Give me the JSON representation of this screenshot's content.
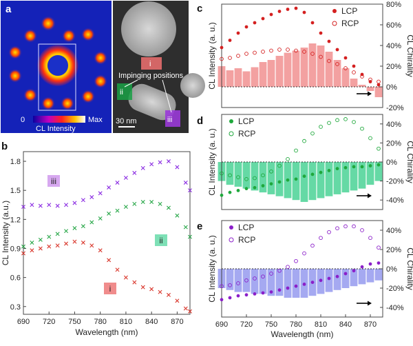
{
  "panels": {
    "a": {
      "label": "a",
      "colorbar_min": "0",
      "colorbar_max": "Max",
      "colorbar_title": "CL Intensity",
      "scalebar": "30 nm",
      "impinging_label": "Impinging positions",
      "pos_i": "i",
      "pos_ii": "ii",
      "pos_iii": "iii"
    },
    "b": {
      "label": "b"
    },
    "c": {
      "label": "c"
    },
    "d": {
      "label": "d"
    },
    "e": {
      "label": "e"
    }
  },
  "chart_data": [
    {
      "panel": "b",
      "type": "scatter",
      "xlabel": "Wavelength (nm)",
      "ylabel": "CL Intensity (a.u.)",
      "xlim": [
        690,
        885
      ],
      "ylim": [
        0.22,
        1.9
      ],
      "xticks": [
        "690",
        "720",
        "750",
        "780",
        "810",
        "840",
        "870"
      ],
      "yticks": [
        "0.3",
        "0.6",
        "0.9",
        "1.2",
        "1.5",
        "1.8"
      ],
      "marker": "x",
      "series": [
        {
          "name": "i",
          "color": "#d9362b",
          "x": [
            690,
            700,
            710,
            720,
            730,
            740,
            750,
            760,
            770,
            780,
            790,
            800,
            810,
            820,
            830,
            840,
            850,
            860,
            870,
            880,
            885
          ],
          "y": [
            0.85,
            0.88,
            0.9,
            0.92,
            0.93,
            0.95,
            0.97,
            0.96,
            0.93,
            0.88,
            0.78,
            0.68,
            0.6,
            0.55,
            0.5,
            0.48,
            0.45,
            0.42,
            0.36,
            0.28,
            0.25
          ]
        },
        {
          "name": "ii",
          "color": "#2aa84a",
          "x": [
            690,
            700,
            710,
            720,
            730,
            740,
            750,
            760,
            770,
            780,
            790,
            800,
            810,
            820,
            830,
            840,
            850,
            860,
            870,
            880,
            885
          ],
          "y": [
            0.92,
            0.96,
            0.99,
            1.02,
            1.05,
            1.08,
            1.11,
            1.13,
            1.17,
            1.21,
            1.26,
            1.29,
            1.33,
            1.36,
            1.38,
            1.38,
            1.36,
            1.32,
            1.24,
            1.12,
            1.02
          ]
        },
        {
          "name": "iii",
          "color": "#8a2be2",
          "x": [
            690,
            700,
            710,
            720,
            730,
            740,
            750,
            760,
            770,
            780,
            790,
            800,
            810,
            820,
            830,
            840,
            850,
            860,
            870,
            880,
            885
          ],
          "y": [
            1.33,
            1.35,
            1.34,
            1.35,
            1.34,
            1.35,
            1.37,
            1.4,
            1.43,
            1.47,
            1.53,
            1.58,
            1.63,
            1.68,
            1.73,
            1.77,
            1.79,
            1.8,
            1.74,
            1.58,
            1.5
          ]
        }
      ]
    },
    {
      "panel": "c",
      "type": "scatter",
      "xlabel": "",
      "ylabel": "CL Intensity (a. u.)",
      "y2label": "CL Chirality",
      "xlim": [
        690,
        885
      ],
      "y2lim": [
        -20,
        80
      ],
      "y2ticks": [
        "80%",
        "60%",
        "40%",
        "20%",
        "0%",
        "-20%"
      ],
      "legend": [
        "LCP",
        "RCP"
      ],
      "fill_color": "#f08a8a",
      "marker_color": "#d42020",
      "series": [
        {
          "name": "LCP",
          "x": [
            690,
            700,
            710,
            720,
            730,
            740,
            750,
            760,
            770,
            780,
            790,
            800,
            810,
            820,
            830,
            840,
            850,
            860,
            870,
            880
          ],
          "y": [
            38,
            45,
            52,
            58,
            62,
            66,
            70,
            73,
            75,
            76,
            72,
            62,
            52,
            44,
            36,
            28,
            20,
            12,
            5,
            2
          ]
        },
        {
          "name": "RCP",
          "x": [
            690,
            700,
            710,
            720,
            730,
            740,
            750,
            760,
            770,
            780,
            790,
            800,
            810,
            820,
            830,
            840,
            850,
            860,
            870,
            880
          ],
          "y": [
            27,
            28,
            30,
            32,
            33,
            34,
            35,
            36,
            36,
            35,
            34,
            32,
            29,
            25,
            22,
            18,
            14,
            10,
            7,
            5
          ]
        },
        {
          "name": "chirality",
          "x": [
            690,
            700,
            710,
            720,
            730,
            740,
            750,
            760,
            770,
            780,
            790,
            800,
            810,
            820,
            830,
            840,
            850,
            860,
            870,
            880
          ],
          "y": [
            20,
            16,
            18,
            15,
            19,
            24,
            26,
            30,
            33,
            35,
            38,
            42,
            40,
            34,
            26,
            18,
            8,
            2,
            -4,
            -10
          ]
        }
      ]
    },
    {
      "panel": "d",
      "type": "scatter",
      "xlabel": "",
      "ylabel": "CL Intensity (a. u.)",
      "y2label": "CL Chirality",
      "xlim": [
        690,
        885
      ],
      "y2lim": [
        -50,
        50
      ],
      "y2ticks": [
        "40%",
        "20%",
        "0%",
        "-20%",
        "-40%"
      ],
      "legend": [
        "LCP",
        "RCP"
      ],
      "fill_color": "#3ecf8e",
      "marker_color": "#1fa83c",
      "series": [
        {
          "name": "LCP",
          "x": [
            690,
            700,
            710,
            720,
            730,
            740,
            750,
            760,
            770,
            780,
            790,
            800,
            810,
            820,
            830,
            840,
            850,
            860,
            870,
            880
          ],
          "y": [
            -35,
            -32,
            -30,
            -28,
            -27,
            -25,
            -23,
            -21,
            -19,
            -18,
            -15,
            -13,
            -11,
            -9,
            -7,
            -6,
            -5,
            -5,
            -4,
            -3
          ]
        },
        {
          "name": "RCP",
          "x": [
            690,
            700,
            710,
            720,
            730,
            740,
            750,
            760,
            770,
            780,
            790,
            800,
            810,
            820,
            830,
            840,
            850,
            860,
            870,
            880
          ],
          "y": [
            -12,
            -14,
            -16,
            -18,
            -17,
            -14,
            -10,
            -4,
            3,
            12,
            22,
            30,
            37,
            41,
            44,
            45,
            42,
            35,
            25,
            14
          ]
        },
        {
          "name": "chirality",
          "x": [
            690,
            700,
            710,
            720,
            730,
            740,
            750,
            760,
            770,
            780,
            790,
            800,
            810,
            820,
            830,
            840,
            850,
            860,
            870,
            880
          ],
          "y": [
            -20,
            -24,
            -26,
            -28,
            -30,
            -32,
            -34,
            -36,
            -38,
            -40,
            -42,
            -40,
            -38,
            -36,
            -34,
            -32,
            -30,
            -28,
            -24,
            -20
          ]
        }
      ]
    },
    {
      "panel": "e",
      "type": "scatter",
      "xlabel": "Wavelength (nm)",
      "ylabel": "CL Intensity (a. u.)",
      "y2label": "CL Chirality",
      "xlim": [
        690,
        885
      ],
      "y2lim": [
        -50,
        50
      ],
      "xticks": [
        "690",
        "720",
        "750",
        "780",
        "810",
        "840",
        "870"
      ],
      "y2ticks": [
        "40%",
        "20%",
        "0%",
        "-20%",
        "-40%"
      ],
      "legend": [
        "LCP",
        "RCP"
      ],
      "fill_color": "#8e93ee",
      "marker_color": "#8b1fc9",
      "series": [
        {
          "name": "LCP",
          "x": [
            690,
            700,
            710,
            720,
            730,
            740,
            750,
            760,
            770,
            780,
            790,
            800,
            810,
            820,
            830,
            840,
            850,
            860,
            870,
            880
          ],
          "y": [
            -32,
            -30,
            -28,
            -27,
            -26,
            -25,
            -24,
            -22,
            -20,
            -18,
            -16,
            -14,
            -12,
            -10,
            -8,
            -5,
            -2,
            2,
            5,
            6
          ]
        },
        {
          "name": "RCP",
          "x": [
            690,
            700,
            710,
            720,
            730,
            740,
            750,
            760,
            770,
            780,
            790,
            800,
            810,
            820,
            830,
            840,
            850,
            860,
            870,
            880
          ],
          "y": [
            -18,
            -17,
            -15,
            -12,
            -10,
            -8,
            -5,
            -2,
            2,
            8,
            16,
            24,
            32,
            38,
            42,
            44,
            44,
            40,
            32,
            22
          ]
        },
        {
          "name": "chirality",
          "x": [
            690,
            700,
            710,
            720,
            730,
            740,
            750,
            760,
            770,
            780,
            790,
            800,
            810,
            820,
            830,
            840,
            850,
            860,
            870,
            880
          ],
          "y": [
            -20,
            -22,
            -24,
            -24,
            -26,
            -26,
            -28,
            -28,
            -30,
            -30,
            -30,
            -28,
            -26,
            -24,
            -22,
            -20,
            -18,
            -16,
            -14,
            -12
          ]
        }
      ]
    }
  ]
}
